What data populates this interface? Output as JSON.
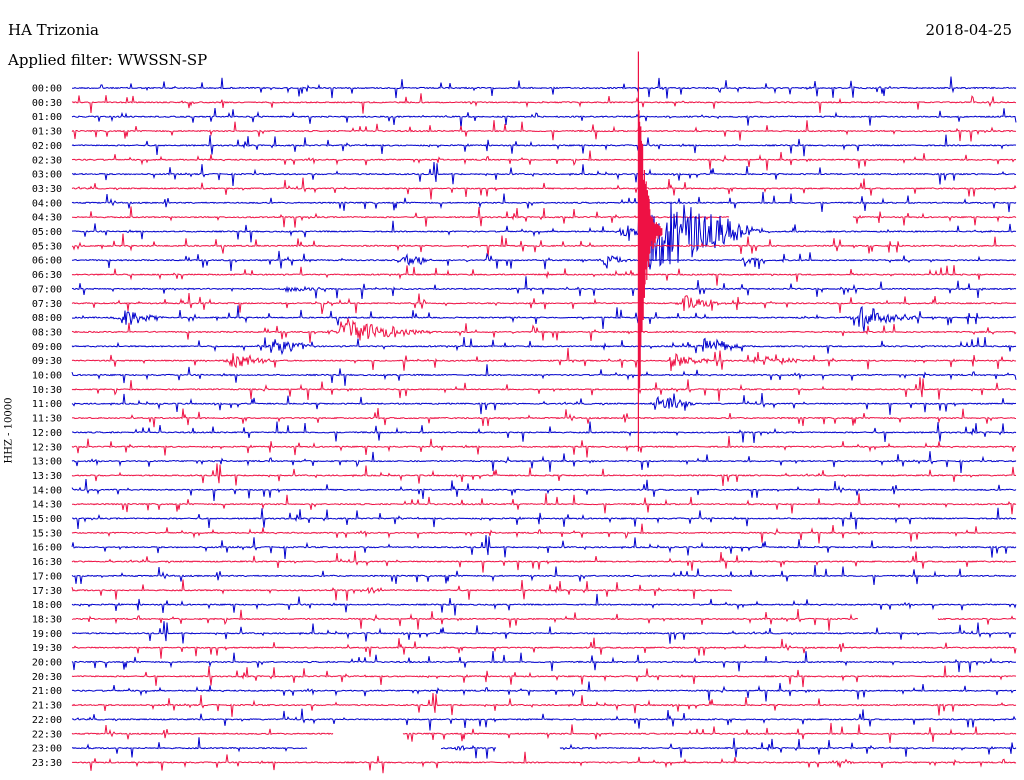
{
  "header": {
    "station": "HA Trizonia",
    "date": "2018-04-25",
    "filter_label": "Applied filter: WWSSN-SP"
  },
  "side_label": "HHZ - 10000",
  "colors": {
    "even_trace": "#0000cc",
    "odd_trace": "#ee1144",
    "text": "#000000",
    "background": "#ffffff"
  },
  "chart_data": {
    "type": "line",
    "title": "HA Trizonia",
    "subtitle": "Applied filter: WWSSN-SP",
    "date": "2018-04-25",
    "channel": "HHZ - 10000",
    "row_labels": [
      "00:00",
      "00:30",
      "01:00",
      "01:30",
      "02:00",
      "02:30",
      "03:00",
      "03:30",
      "04:00",
      "04:30",
      "05:00",
      "05:30",
      "06:00",
      "06:30",
      "07:00",
      "07:30",
      "08:00",
      "08:30",
      "09:00",
      "09:30",
      "10:00",
      "10:30",
      "11:00",
      "11:30",
      "12:00",
      "12:30",
      "13:00",
      "13:30",
      "14:00",
      "14:30",
      "15:00",
      "15:30",
      "16:00",
      "16:30",
      "17:00",
      "17:30",
      "18:00",
      "18:30",
      "19:00",
      "19:30",
      "20:00",
      "20:30",
      "21:00",
      "21:30",
      "22:00",
      "22:30",
      "23:00",
      "23:30"
    ],
    "row_minutes": 30,
    "grid": false,
    "events": [
      {
        "row": "05:00",
        "minute": 18.0,
        "amplitude": 10,
        "duration_min": 4
      },
      {
        "row": "06:00",
        "minute": 10.5,
        "amplitude": 1.6,
        "duration_min": 1
      },
      {
        "row": "06:00",
        "minute": 16.9,
        "amplitude": 1.4,
        "duration_min": 1
      },
      {
        "row": "06:00",
        "minute": 21.3,
        "amplitude": 0.8,
        "duration_min": 1
      },
      {
        "row": "07:00",
        "minute": 6.8,
        "amplitude": 0.6,
        "duration_min": 2
      },
      {
        "row": "07:30",
        "minute": 19.4,
        "amplitude": 1.8,
        "duration_min": 1.5
      },
      {
        "row": "08:00",
        "minute": 1.5,
        "amplitude": 2.2,
        "duration_min": 1.5
      },
      {
        "row": "08:00",
        "minute": 25.0,
        "amplitude": 2.6,
        "duration_min": 2
      },
      {
        "row": "08:30",
        "minute": 8.5,
        "amplitude": 2.6,
        "duration_min": 3
      },
      {
        "row": "09:00",
        "minute": 6.3,
        "amplitude": 2.2,
        "duration_min": 1.5
      },
      {
        "row": "09:00",
        "minute": 20.0,
        "amplitude": 2.0,
        "duration_min": 1.5
      },
      {
        "row": "09:30",
        "minute": 5.0,
        "amplitude": 1.8,
        "duration_min": 1.5
      },
      {
        "row": "09:30",
        "minute": 19.0,
        "amplitude": 1.6,
        "duration_min": 1.5
      },
      {
        "row": "09:30",
        "minute": 22.0,
        "amplitude": 1.0,
        "duration_min": 1.5
      },
      {
        "row": "11:00",
        "minute": 18.5,
        "amplitude": 1.8,
        "duration_min": 1.5
      },
      {
        "row": "17:30",
        "minute": 9.4,
        "amplitude": 0.8,
        "duration_min": 0.5
      },
      {
        "row": "23:00",
        "minute": 12.2,
        "amplitude": 0.8,
        "duration_min": 0.5
      },
      {
        "row": "23:30",
        "minute": 24.4,
        "amplitude": 1.0,
        "duration_min": 0.5
      }
    ],
    "data_gaps": [
      {
        "row": "04:30",
        "start_min": 20.9,
        "end_min": 24.8
      },
      {
        "row": "17:30",
        "start_min": 21.0,
        "end_min": 30.0
      },
      {
        "row": "18:30",
        "start_min": 25.0,
        "end_min": 27.5
      },
      {
        "row": "22:30",
        "start_min": 8.3,
        "end_min": 10.5
      },
      {
        "row": "23:00",
        "start_min": 7.5,
        "end_min": 11.7
      },
      {
        "row": "23:00",
        "start_min": 13.5,
        "end_min": 15.5
      }
    ]
  }
}
